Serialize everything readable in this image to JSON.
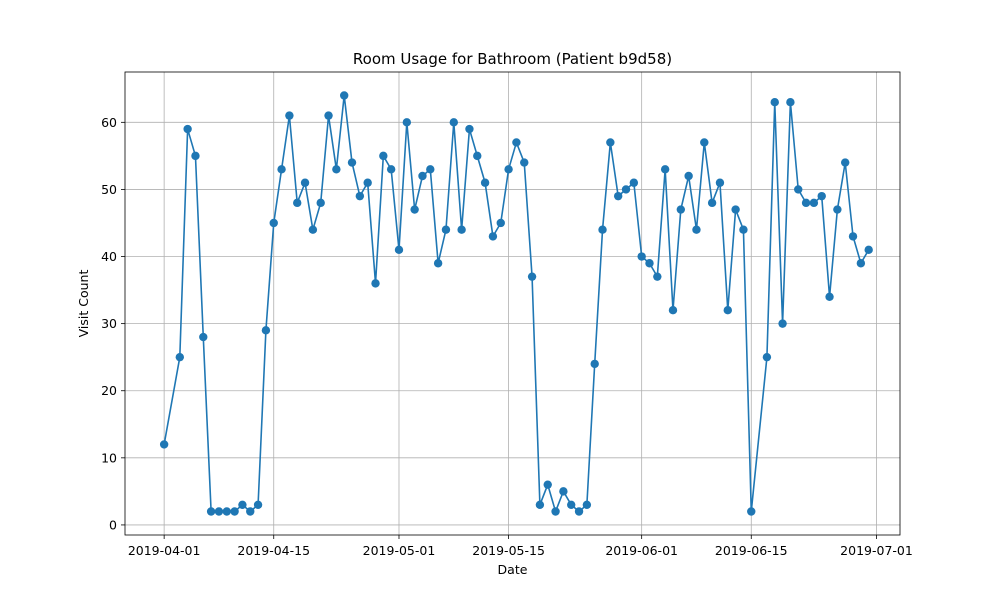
{
  "chart_data": {
    "type": "line",
    "title": "Room Usage for Bathroom (Patient b9d58)",
    "xlabel": "Date",
    "ylabel": "Visit Count",
    "x_ticks": [
      {
        "date": "2019-04-01",
        "label": "2019-04-01"
      },
      {
        "date": "2019-04-15",
        "label": "2019-04-15"
      },
      {
        "date": "2019-05-01",
        "label": "2019-05-01"
      },
      {
        "date": "2019-05-15",
        "label": "2019-05-15"
      },
      {
        "date": "2019-06-01",
        "label": "2019-06-01"
      },
      {
        "date": "2019-06-15",
        "label": "2019-06-15"
      },
      {
        "date": "2019-07-01",
        "label": "2019-07-01"
      }
    ],
    "y_ticks": [
      0,
      10,
      20,
      30,
      40,
      50,
      60
    ],
    "xlim": [
      "2019-03-27",
      "2019-07-04"
    ],
    "ylim": [
      -1.5,
      67.5
    ],
    "grid": true,
    "marker": "circle",
    "color": "#1f77b4",
    "series": [
      {
        "x": [
          "2019-04-01",
          "2019-04-03",
          "2019-04-04",
          "2019-04-05",
          "2019-04-06",
          "2019-04-07",
          "2019-04-08",
          "2019-04-09",
          "2019-04-10",
          "2019-04-11",
          "2019-04-12",
          "2019-04-13",
          "2019-04-14",
          "2019-04-15",
          "2019-04-16",
          "2019-04-17",
          "2019-04-18",
          "2019-04-19",
          "2019-04-20",
          "2019-04-21",
          "2019-04-22",
          "2019-04-23",
          "2019-04-24",
          "2019-04-25",
          "2019-04-26",
          "2019-04-27",
          "2019-04-28",
          "2019-04-29",
          "2019-04-30",
          "2019-05-01",
          "2019-05-02",
          "2019-05-03",
          "2019-05-04",
          "2019-05-05",
          "2019-05-06",
          "2019-05-07",
          "2019-05-08",
          "2019-05-09",
          "2019-05-10",
          "2019-05-11",
          "2019-05-12",
          "2019-05-13",
          "2019-05-14",
          "2019-05-15",
          "2019-05-16",
          "2019-05-17",
          "2019-05-18",
          "2019-05-19",
          "2019-05-20",
          "2019-05-21",
          "2019-05-22",
          "2019-05-23",
          "2019-05-24",
          "2019-05-25",
          "2019-05-26",
          "2019-05-27",
          "2019-05-28",
          "2019-05-29",
          "2019-05-30",
          "2019-05-31",
          "2019-06-01",
          "2019-06-02",
          "2019-06-03",
          "2019-06-04",
          "2019-06-05",
          "2019-06-06",
          "2019-06-07",
          "2019-06-08",
          "2019-06-09",
          "2019-06-10",
          "2019-06-11",
          "2019-06-12",
          "2019-06-13",
          "2019-06-14",
          "2019-06-15",
          "2019-06-17",
          "2019-06-18",
          "2019-06-19",
          "2019-06-20",
          "2019-06-21",
          "2019-06-22",
          "2019-06-23",
          "2019-06-24",
          "2019-06-25",
          "2019-06-26",
          "2019-06-27",
          "2019-06-28",
          "2019-06-29",
          "2019-06-30"
        ],
        "values": [
          12,
          25,
          59,
          55,
          28,
          2,
          2,
          2,
          2,
          3,
          2,
          3,
          29,
          45,
          53,
          61,
          48,
          51,
          44,
          48,
          61,
          53,
          64,
          54,
          49,
          51,
          36,
          55,
          53,
          41,
          60,
          47,
          52,
          53,
          39,
          44,
          60,
          44,
          59,
          55,
          51,
          43,
          45,
          53,
          57,
          54,
          37,
          3,
          6,
          2,
          5,
          3,
          2,
          3,
          24,
          44,
          57,
          49,
          50,
          51,
          40,
          39,
          37,
          53,
          32,
          47,
          52,
          44,
          57,
          48,
          51,
          32,
          47,
          44,
          2,
          25,
          63,
          30,
          63,
          50,
          48,
          48,
          49,
          34,
          47,
          54,
          43,
          39,
          41
        ]
      }
    ]
  }
}
